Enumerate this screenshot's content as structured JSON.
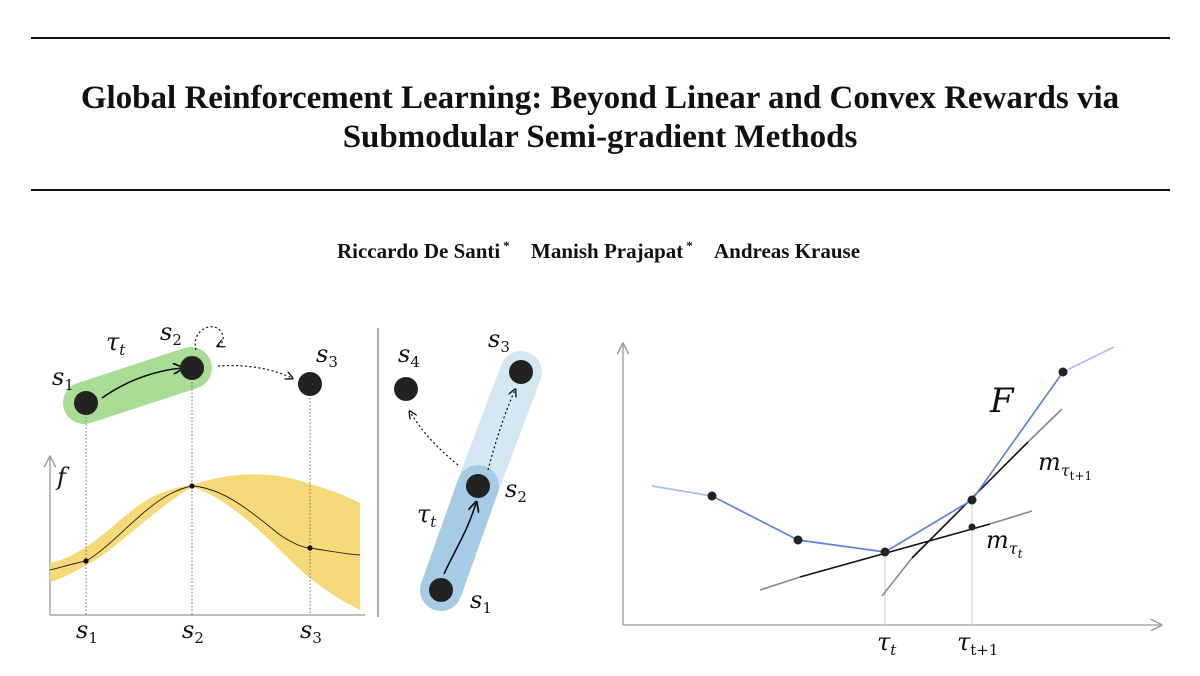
{
  "paper": {
    "title_line1": "Global Reinforcement Learning: Beyond Linear and Convex Rewards via",
    "title_line2": "Submodular Semi-gradient Methods",
    "authors": [
      {
        "name": "Riccardo De Santi",
        "mark": "*"
      },
      {
        "name": "Manish Prajapat",
        "mark": "*"
      },
      {
        "name": "Andreas Krause",
        "mark": ""
      }
    ]
  },
  "figure": {
    "panel_a": {
      "trajectory_label": "τ",
      "trajectory_sub": "t",
      "states": [
        {
          "base": "s",
          "sub": "1"
        },
        {
          "base": "s",
          "sub": "2"
        },
        {
          "base": "s",
          "sub": "3"
        }
      ],
      "function_label": "f",
      "axis_ticks": [
        {
          "base": "s",
          "sub": "1"
        },
        {
          "base": "s",
          "sub": "2"
        },
        {
          "base": "s",
          "sub": "3"
        }
      ],
      "colors": {
        "trajectory": "#a9dc95",
        "uncertainty": "#f5d56a"
      }
    },
    "panel_b": {
      "trajectory_label": "τ",
      "trajectory_sub": "t",
      "states": [
        {
          "base": "s",
          "sub": "1"
        },
        {
          "base": "s",
          "sub": "2"
        },
        {
          "base": "s",
          "sub": "3"
        },
        {
          "base": "s",
          "sub": "4"
        }
      ],
      "colors": {
        "trajectory": "#a6cbe5",
        "candidate": "#d6e7f4"
      }
    },
    "panel_c": {
      "function_label": "F",
      "modular_base": "m",
      "modular_labels": [
        {
          "base": "τ",
          "sub": "t+1"
        },
        {
          "base": "τ",
          "sub": "t"
        }
      ],
      "axis_ticks": [
        {
          "base": "τ",
          "sub": "t"
        },
        {
          "base": "τ",
          "sub": "t+1"
        }
      ],
      "colors": {
        "function": "#5b86d6",
        "bound": "#111111",
        "bound_alt": "#888888"
      }
    }
  }
}
